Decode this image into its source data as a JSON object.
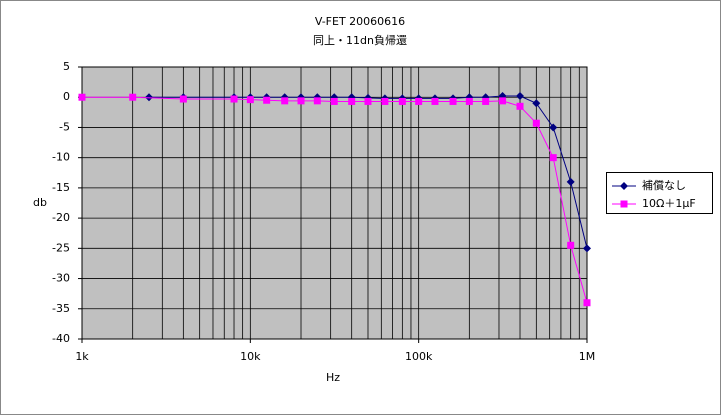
{
  "chart_data": {
    "type": "line",
    "title": "V-FET  20060616",
    "subtitle": "同上・11dn負帰還",
    "x_label": "Hz",
    "y_label": "db",
    "log_x": true,
    "grid": true,
    "legend": "right",
    "xlim": [
      1000,
      1000000
    ],
    "ylim": [
      -40,
      5
    ],
    "xticks": [
      {
        "value": 1000,
        "label": "1k"
      },
      {
        "value": 10000,
        "label": "10k"
      },
      {
        "value": 100000,
        "label": "100k"
      },
      {
        "value": 1000000,
        "label": "1M"
      }
    ],
    "yticks": [
      5,
      0,
      -5,
      -10,
      -15,
      -20,
      -25,
      -30,
      -35,
      -40
    ],
    "series": [
      {
        "name": "補償なし",
        "color": "#000080",
        "marker": "diamond",
        "x": [
          2500,
          4000,
          8000,
          10000,
          12500,
          16000,
          20000,
          25000,
          31500,
          40000,
          50000,
          63000,
          80000,
          100000,
          125000,
          160000,
          200000,
          250000,
          315000,
          400000,
          500000,
          630000,
          800000,
          1000000
        ],
        "values": [
          0,
          0,
          0,
          0,
          0,
          0,
          0,
          0,
          0,
          0,
          -0.1,
          -0.2,
          -0.2,
          -0.2,
          -0.2,
          -0.2,
          0,
          0,
          0.2,
          0.2,
          -1,
          -5,
          -14,
          -25
        ]
      },
      {
        "name": "10Ω＋1μF",
        "color": "#ff00ff",
        "marker": "square",
        "x": [
          1000,
          2000,
          4000,
          8000,
          10000,
          12500,
          16000,
          20000,
          25000,
          31500,
          40000,
          50000,
          63000,
          80000,
          100000,
          125000,
          160000,
          200000,
          250000,
          315000,
          400000,
          500000,
          630000,
          800000,
          1000000
        ],
        "values": [
          0,
          0,
          -0.3,
          -0.3,
          -0.4,
          -0.5,
          -0.6,
          -0.6,
          -0.6,
          -0.7,
          -0.7,
          -0.7,
          -0.7,
          -0.7,
          -0.7,
          -0.7,
          -0.7,
          -0.7,
          -0.7,
          -0.6,
          -1.5,
          -4.3,
          -10,
          -24.5,
          -34
        ]
      }
    ]
  }
}
